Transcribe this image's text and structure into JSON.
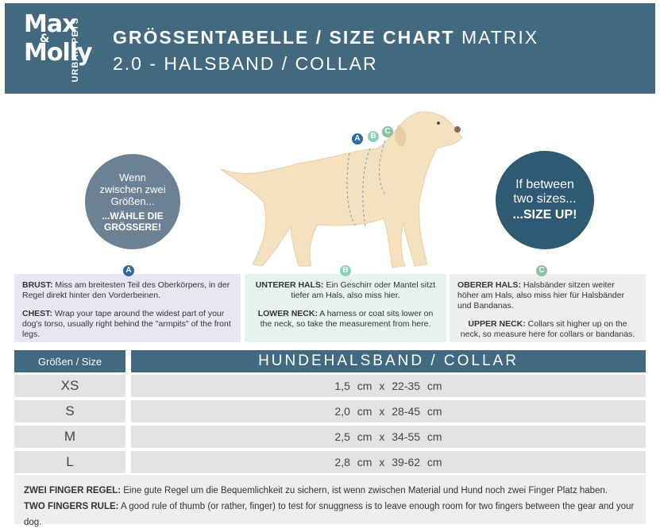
{
  "header": {
    "logo_top": "Max",
    "logo_amp": "&",
    "logo_bottom": "Molly",
    "logo_side": "URBAN PETS",
    "title_bold": "GRÖSSENTABELLE / SIZE CHART",
    "title_light": "MATRIX",
    "subtitle": "2.0 - HALSBAND / COLLAR"
  },
  "tips": {
    "left": {
      "text": "Wenn zwischen zwei Größen...",
      "bold": "...WÄHLE DIE GRÖSSERE!"
    },
    "right": {
      "text": "If between two sizes...",
      "bold": "...SIZE UP!"
    }
  },
  "markers": [
    "A",
    "B",
    "C"
  ],
  "info": [
    {
      "letter": "A",
      "de_label": "BRUST:",
      "de_text": "Miss am breitesten Teil des Oberkörpers, in der Regel direkt hinter den Vorderbeinen.",
      "en_label": "CHEST:",
      "en_text": "Wrap your tape around the widest part of your dog's torso, usually right behind the \"armpits\" of the front legs."
    },
    {
      "letter": "B",
      "de_label": "UNTERER HALS:",
      "de_text": "Ein Geschirr oder Mantel sitzt tiefer am Hals, also miss hier.",
      "en_label": "LOWER NECK:",
      "en_text": "A harness or coat sits lower on the neck, so take the measurement from here."
    },
    {
      "letter": "C",
      "de_label": "OBERER HALS:",
      "de_text": "Halsbänder sitzen weiter höher am Hals, also miss hier für Halsbänder und Bandanas.",
      "en_label": "UPPER NECK:",
      "en_text": "Collars sit higher up on the neck, so measure here for collars or bandanas."
    }
  ],
  "table": {
    "headers": [
      "Größen / Size",
      "HUNDEHALSBAND / COLLAR"
    ],
    "rows": [
      [
        "XS",
        "1,5 cm x 22-35 cm"
      ],
      [
        "S",
        "2,0 cm x 28-45 cm"
      ],
      [
        "M",
        "2,5 cm x 34-55 cm"
      ],
      [
        "L",
        "2,8 cm x 39-62 cm"
      ]
    ]
  },
  "notes": [
    {
      "label": "ZWEI FINGER REGEL:",
      "text": "Eine gute Regel um die Bequemlichkeit zu sichern, ist wenn zwischen Material und Hund noch zwei Finger Platz haben."
    },
    {
      "label": "TWO FINGERS RULE:",
      "text": "A good rule of thumb (or rather, finger) to test for snuggness is to leave enough room for two fingers between the gear and your dog."
    }
  ]
}
